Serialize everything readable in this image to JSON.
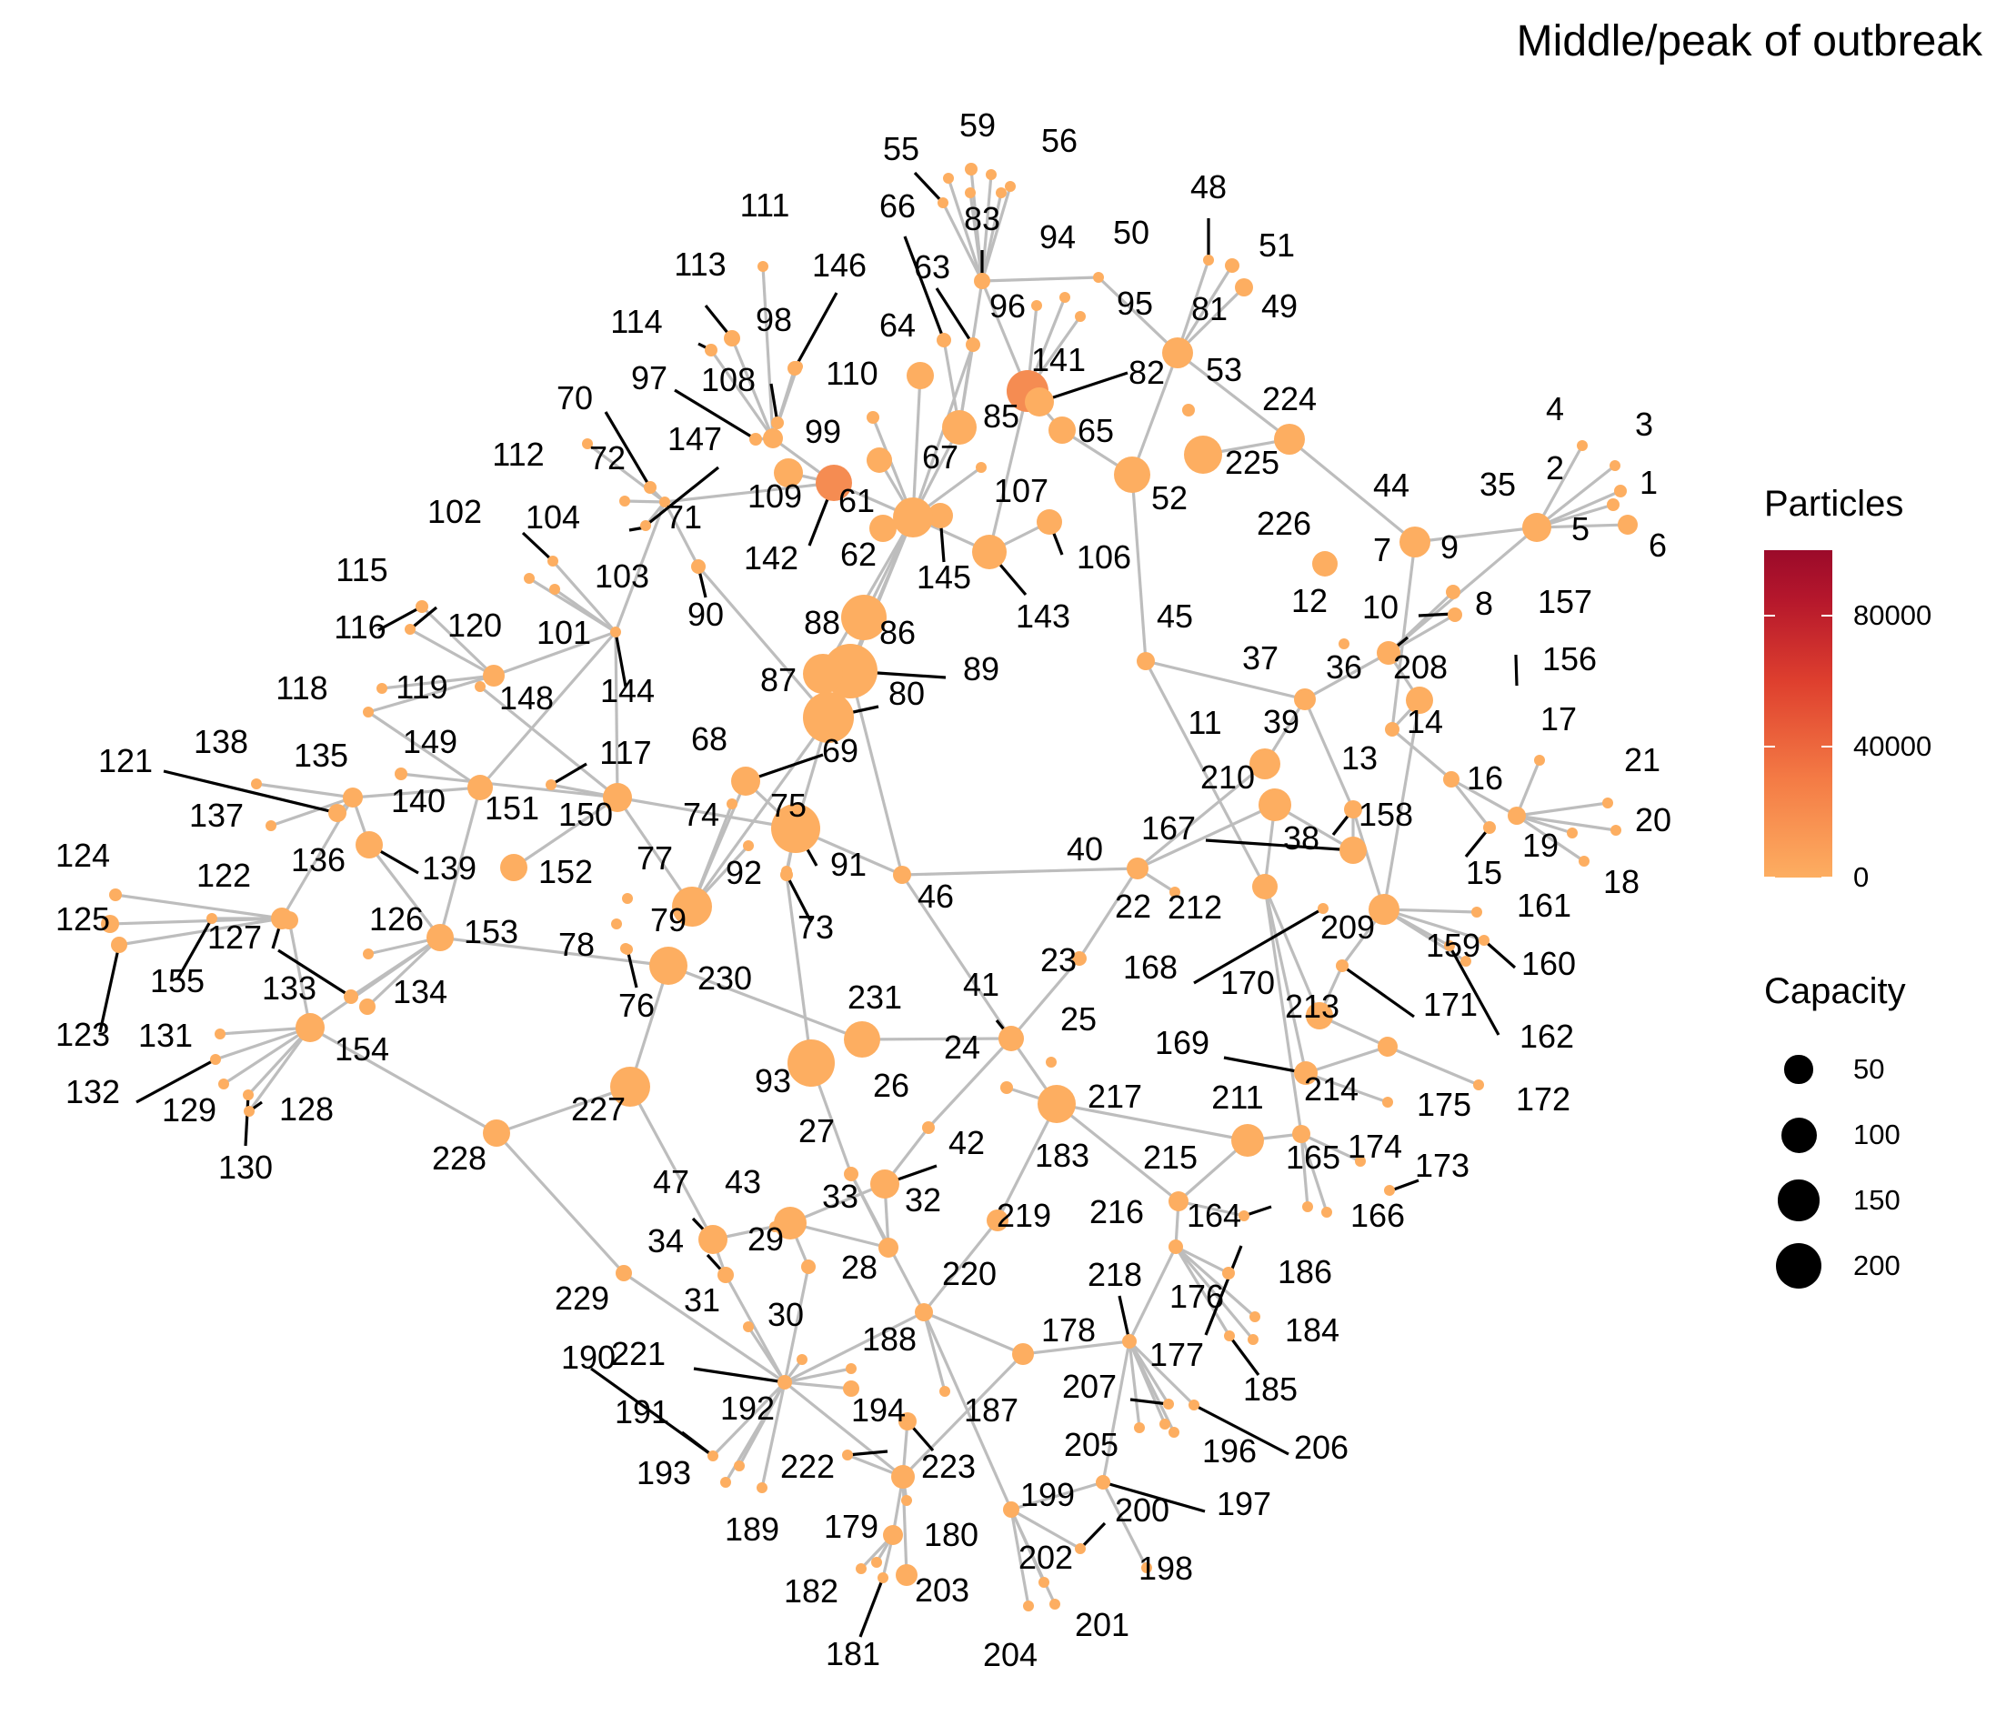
{
  "title": "Middle/peak of outbreak",
  "colors": {
    "node_low": "#fdae61",
    "node_mid": "#f58c52",
    "node_high": "#9b0a2a",
    "edge": "#bdbdbd",
    "leader_line": "#000000",
    "background": "#ffffff"
  },
  "legend": {
    "particles": {
      "title": "Particles",
      "ticks": [
        {
          "label": "80000",
          "value": 80000
        },
        {
          "label": "40000",
          "value": 40000
        },
        {
          "label": "0",
          "value": 0
        }
      ],
      "max": 100000
    },
    "capacity": {
      "title": "Capacity",
      "items": [
        {
          "label": "50",
          "value": 50
        },
        {
          "label": "100",
          "value": 100
        },
        {
          "label": "150",
          "value": 150
        },
        {
          "label": "200",
          "value": 200
        }
      ]
    }
  },
  "network": {
    "node_labels": [
      "1",
      "2",
      "3",
      "4",
      "5",
      "6",
      "7",
      "8",
      "9",
      "10",
      "11",
      "12",
      "13",
      "14",
      "15",
      "16",
      "17",
      "18",
      "19",
      "20",
      "21",
      "22",
      "23",
      "24",
      "25",
      "26",
      "27",
      "28",
      "29",
      "30",
      "31",
      "32",
      "33",
      "34",
      "35",
      "36",
      "37",
      "38",
      "39",
      "40",
      "41",
      "42",
      "43",
      "44",
      "45",
      "46",
      "47",
      "48",
      "49",
      "50",
      "51",
      "52",
      "53",
      "55",
      "56",
      "59",
      "61",
      "62",
      "63",
      "64",
      "65",
      "66",
      "67",
      "68",
      "69",
      "70",
      "71",
      "72",
      "73",
      "74",
      "75",
      "76",
      "77",
      "78",
      "79",
      "80",
      "81",
      "82",
      "83",
      "85",
      "86",
      "87",
      "88",
      "89",
      "90",
      "91",
      "92",
      "93",
      "94",
      "95",
      "96",
      "97",
      "98",
      "99",
      "101",
      "102",
      "103",
      "104",
      "106",
      "107",
      "108",
      "109",
      "110",
      "111",
      "112",
      "113",
      "114",
      "115",
      "116",
      "117",
      "118",
      "119",
      "120",
      "121",
      "122",
      "123",
      "124",
      "125",
      "126",
      "127",
      "128",
      "129",
      "130",
      "131",
      "132",
      "133",
      "134",
      "135",
      "136",
      "137",
      "138",
      "139",
      "140",
      "141",
      "142",
      "143",
      "144",
      "145",
      "146",
      "147",
      "148",
      "149",
      "150",
      "151",
      "152",
      "153",
      "154",
      "155",
      "156",
      "157",
      "158",
      "159",
      "160",
      "161",
      "162",
      "164",
      "165",
      "166",
      "167",
      "168",
      "169",
      "170",
      "171",
      "172",
      "173",
      "174",
      "175",
      "176",
      "177",
      "178",
      "179",
      "180",
      "181",
      "182",
      "183",
      "184",
      "185",
      "186",
      "187",
      "188",
      "189",
      "190",
      "191",
      "192",
      "193",
      "194",
      "196",
      "197",
      "198",
      "199",
      "200",
      "201",
      "202",
      "203",
      "204",
      "205",
      "206",
      "207",
      "208",
      "209",
      "210",
      "211",
      "212",
      "213",
      "214",
      "215",
      "216",
      "217",
      "218",
      "219",
      "220",
      "221",
      "222",
      "223",
      "224",
      "225",
      "226",
      "227",
      "228",
      "229",
      "230",
      "231"
    ]
  }
}
